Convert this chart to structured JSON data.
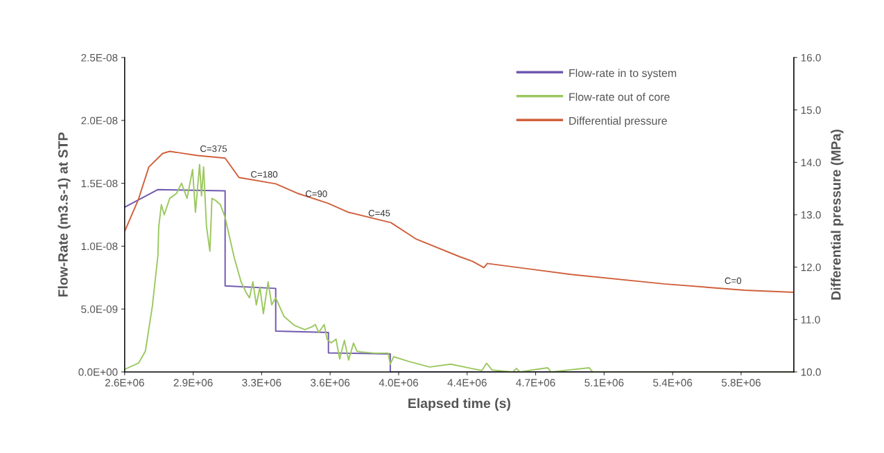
{
  "chart_data": {
    "type": "line",
    "xlabel": "Elapsed time (s)",
    "ylabel": "Flow-Rate (m3.s-1) at STP",
    "y2label": "Differential pressure (MPa)",
    "xlim": [
      2550000,
      6067000
    ],
    "xticks": [
      {
        "value": 2550000,
        "label": "2.6E+06"
      },
      {
        "value": 2910000,
        "label": "2.9E+06"
      },
      {
        "value": 3270000,
        "label": "3.3E+06"
      },
      {
        "value": 3630000,
        "label": "3.6E+06"
      },
      {
        "value": 3990000,
        "label": "4.0E+06"
      },
      {
        "value": 4350000,
        "label": "4.4E+06"
      },
      {
        "value": 4710000,
        "label": "4.7E+06"
      },
      {
        "value": 5070000,
        "label": "5.1E+06"
      },
      {
        "value": 5430000,
        "label": "5.4E+06"
      },
      {
        "value": 5790000,
        "label": "5.8E+06"
      }
    ],
    "ylim": [
      0,
      2.5e-08
    ],
    "yticks": [
      {
        "value": 0,
        "label": "0.0E+00"
      },
      {
        "value": 5e-09,
        "label": "5.0E-09"
      },
      {
        "value": 1e-08,
        "label": "1.0E-08"
      },
      {
        "value": 1.5e-08,
        "label": "1.5E-08"
      },
      {
        "value": 2e-08,
        "label": "2.0E-08"
      },
      {
        "value": 2.5e-08,
        "label": "2.5E-08"
      }
    ],
    "y2lim": [
      10,
      16
    ],
    "y2ticks": [
      {
        "value": 10,
        "label": "10.0"
      },
      {
        "value": 11,
        "label": "11.0"
      },
      {
        "value": 12,
        "label": "12.0"
      },
      {
        "value": 13,
        "label": "13.0"
      },
      {
        "value": 14,
        "label": "14.0"
      },
      {
        "value": 15,
        "label": "15.0"
      },
      {
        "value": 16,
        "label": "16.0"
      }
    ],
    "grid": false,
    "legend": "top right",
    "marker": "none",
    "line_style": "solid",
    "series": [
      {
        "name": "Flow-rate in to system",
        "color": "#7058b0",
        "x": [
          2550000,
          2725000,
          3078000,
          3078000,
          3344000,
          3344000,
          3621000,
          3621000,
          3946000,
          3946000,
          6067000
        ],
        "values": [
          1.31e-08,
          1.45e-08,
          1.44e-08,
          6.84e-09,
          6.64e-09,
          3.25e-09,
          3.14e-09,
          1.51e-09,
          1.43e-09,
          0,
          0
        ]
      },
      {
        "name": "Flow-rate out of core",
        "color": "#9cc860",
        "x": [
          2550000,
          2623000,
          2659000,
          2696000,
          2725000,
          2729000,
          2743000,
          2758000,
          2787000,
          2823000,
          2849000,
          2878000,
          2907000,
          2922000,
          2944000,
          2954000,
          2965000,
          2980000,
          2998000,
          3009000,
          3031000,
          3053000,
          3078000,
          3097000,
          3126000,
          3162000,
          3188000,
          3206000,
          3224000,
          3242000,
          3261000,
          3279000,
          3304000,
          3323000,
          3344000,
          3388000,
          3443000,
          3497000,
          3534000,
          3552000,
          3570000,
          3599000,
          3614000,
          3636000,
          3661000,
          3680000,
          3705000,
          3727000,
          3753000,
          3771000,
          3789000,
          3862000,
          3935000,
          3946000,
          3964000,
          4044000,
          4153000,
          4263000,
          4372000,
          4427000,
          4452000,
          4481000,
          4590000,
          4609000,
          4627000,
          4773000,
          4791000,
          4991000,
          5010000,
          6067000
        ],
        "values": [
          2e-10,
          7e-10,
          1.65e-09,
          5.26e-09,
          9.28e-09,
          1.15e-08,
          1.33e-08,
          1.25e-08,
          1.38e-08,
          1.42e-08,
          1.5e-08,
          1.38e-08,
          1.61e-08,
          1.27e-08,
          1.65e-08,
          1.4e-08,
          1.63e-08,
          1.16e-08,
          9.6e-09,
          1.38e-08,
          1.36e-08,
          1.33e-08,
          1.23e-08,
          1.1e-08,
          9.09e-09,
          7.16e-09,
          6.33e-09,
          5.89e-09,
          7.16e-09,
          5.34e-09,
          6.74e-09,
          4.63e-09,
          7.16e-09,
          5.34e-09,
          5.89e-09,
          4.4e-09,
          3.69e-09,
          3.36e-09,
          3.58e-09,
          3.77e-09,
          3.14e-09,
          3.77e-09,
          2.59e-09,
          2.31e-09,
          2.61e-09,
          1.02e-09,
          2.51e-09,
          9.4e-10,
          2.29e-09,
          1.65e-09,
          1.6e-09,
          1.49e-09,
          1.49e-09,
          6.1e-10,
          1.21e-09,
          8.3e-10,
          3.9e-10,
          6.2e-10,
          2.8e-10,
          1.1e-10,
          6.9e-10,
          1.5e-10,
          0,
          2.8e-10,
          0,
          3.3e-10,
          0,
          3.3e-10,
          0,
          0
        ]
      },
      {
        "name": "Differential pressure",
        "color": "#d0603c",
        "axis": "y2",
        "x": [
          2550000,
          2623000,
          2677000,
          2750000,
          2787000,
          2932000,
          3078000,
          3151000,
          3344000,
          3457000,
          3618000,
          3723000,
          3949000,
          4080000,
          4310000,
          4379000,
          4438000,
          4456000,
          4897000,
          5385000,
          5808000,
          6067000
        ],
        "values": [
          12.68,
          13.3,
          13.91,
          14.17,
          14.21,
          14.13,
          14.08,
          13.71,
          13.59,
          13.41,
          13.22,
          13.05,
          12.85,
          12.54,
          12.2,
          12.11,
          11.99,
          12.07,
          11.86,
          11.68,
          11.56,
          11.52
        ]
      }
    ],
    "annotations": [
      "C=375",
      "C=180",
      "C=90",
      "C=45",
      "C=0"
    ]
  }
}
